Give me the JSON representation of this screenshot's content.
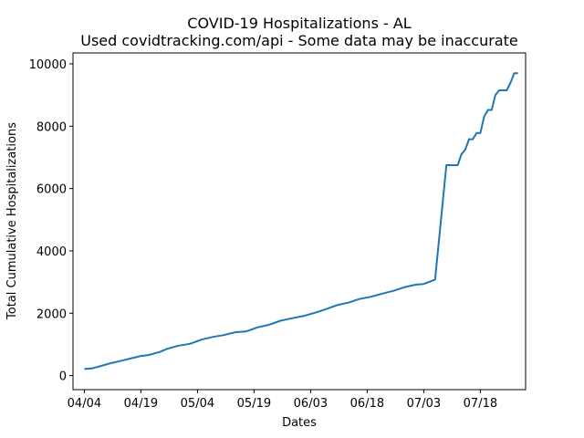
{
  "chart_data": {
    "type": "line",
    "title": "COVID-19 Hospitalizations - AL",
    "subtitle": "Used covidtracking.com/api - Some data may be inaccurate",
    "xlabel": "Dates",
    "ylabel": "Total Cumulative Hospitalizations",
    "x_tick_labels": [
      "04/04",
      "04/19",
      "05/04",
      "05/19",
      "06/03",
      "06/18",
      "07/03",
      "07/18"
    ],
    "y_tick_labels": [
      "0",
      "2000",
      "4000",
      "6000",
      "8000",
      "10000"
    ],
    "x_dates": [
      "04/04",
      "04/06",
      "04/07",
      "04/09",
      "04/11",
      "04/14",
      "04/17",
      "04/19",
      "04/21",
      "04/24",
      "04/26",
      "04/29",
      "05/02",
      "05/05",
      "05/08",
      "05/11",
      "05/14",
      "05/17",
      "05/20",
      "05/23",
      "05/26",
      "05/29",
      "06/01",
      "06/04",
      "06/07",
      "06/10",
      "06/13",
      "06/16",
      "06/19",
      "06/22",
      "06/25",
      "06/28",
      "07/01",
      "07/03",
      "07/06",
      "07/09",
      "07/10",
      "07/12",
      "07/13",
      "07/14",
      "07/15",
      "07/16",
      "07/17",
      "07/18",
      "07/19",
      "07/20",
      "07/21",
      "07/22",
      "07/23",
      "07/24",
      "07/25",
      "07/26",
      "07/27",
      "07/28"
    ],
    "series": [
      {
        "color": "#1f77b4",
        "values": [
          210,
          230,
          260,
          330,
          400,
          480,
          570,
          630,
          660,
          760,
          860,
          960,
          1020,
          1150,
          1240,
          1300,
          1390,
          1420,
          1550,
          1630,
          1760,
          1840,
          1910,
          2010,
          2130,
          2260,
          2340,
          2460,
          2530,
          2630,
          2720,
          2840,
          2920,
          2940,
          3080,
          6750,
          6750,
          6750,
          7100,
          7250,
          7580,
          7580,
          7780,
          7780,
          8300,
          8520,
          8520,
          9000,
          9150,
          9150,
          9150,
          9400,
          9700,
          9700
        ]
      }
    ],
    "xlim": [
      "04/01",
      "07/30"
    ],
    "ylim": [
      -450,
      10350
    ],
    "grid": false,
    "legend": "none"
  }
}
